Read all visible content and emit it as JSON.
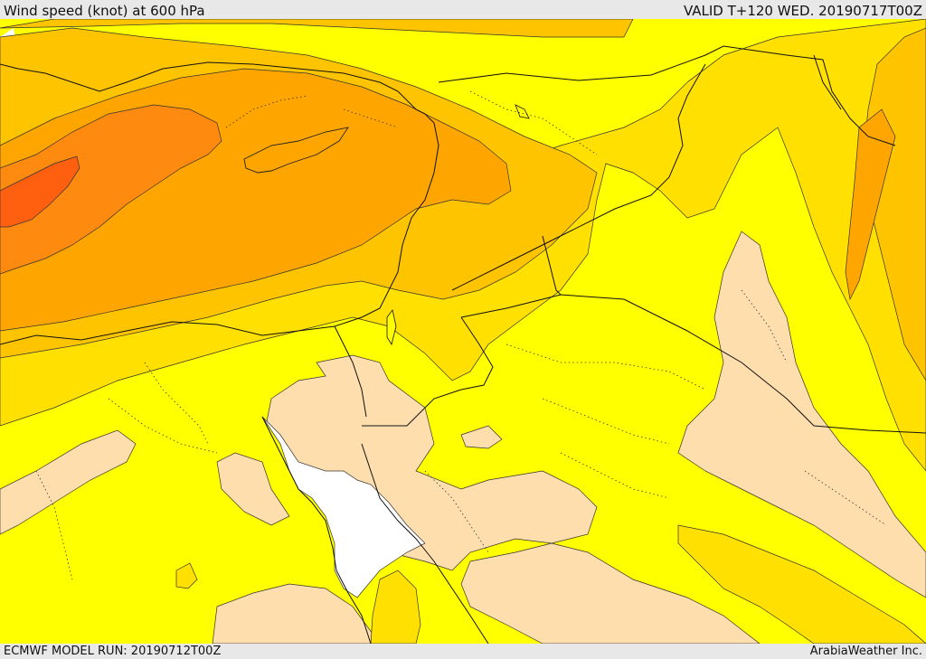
{
  "header": {
    "title": "Wind speed (knot) at 600 hPa",
    "valid": "VALID T+120 WED. 20190717T00Z"
  },
  "footer": {
    "model_run": "ECMWF MODEL RUN: 20190712T00Z",
    "credit": "ArabiaWeather Inc."
  },
  "map": {
    "colors": {
      "sea": "#ffffff",
      "band_lowest": "#ffdead",
      "band_low": "#ffff00",
      "band_mid1": "#ffe000",
      "band_mid2": "#ffc400",
      "band_mid3": "#ffa500",
      "band_high": "#ff8a10",
      "band_max": "#ff6010"
    }
  }
}
